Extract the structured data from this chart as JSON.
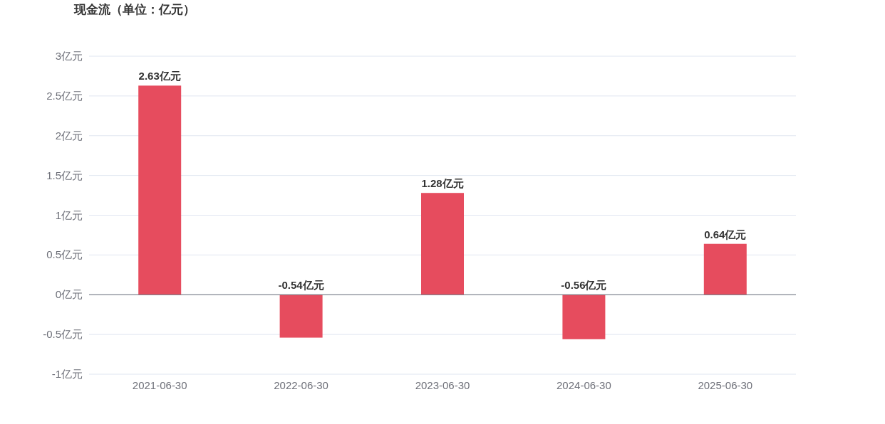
{
  "chart_data": {
    "type": "bar",
    "title": "现金流（单位：亿元）",
    "categories": [
      "2021-06-30",
      "2022-06-30",
      "2023-06-30",
      "2024-06-30",
      "2025-06-30"
    ],
    "values": [
      2.63,
      -0.54,
      1.28,
      -0.56,
      0.64
    ],
    "value_labels": [
      "2.63亿元",
      "-0.54亿元",
      "1.28亿元",
      "-0.56亿元",
      "0.64亿元"
    ],
    "color": "#e64c5e",
    "ylim": [
      -1,
      3
    ],
    "yticks": [
      {
        "value": -1,
        "label": "-1亿元"
      },
      {
        "value": -0.5,
        "label": "-0.5亿元"
      },
      {
        "value": 0,
        "label": "0亿元"
      },
      {
        "value": 0.5,
        "label": "0.5亿元"
      },
      {
        "value": 1,
        "label": "1亿元"
      },
      {
        "value": 1.5,
        "label": "1.5亿元"
      },
      {
        "value": 2,
        "label": "2亿元"
      },
      {
        "value": 2.5,
        "label": "2.5亿元"
      },
      {
        "value": 3,
        "label": "3亿元"
      }
    ],
    "grid": "y"
  }
}
